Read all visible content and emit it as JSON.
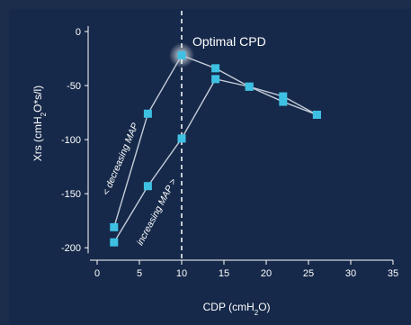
{
  "chart_data": {
    "type": "scatter",
    "xlabel": "CDP (cmH2O)",
    "ylabel": "Xrs (cmH2O*s/l)",
    "xlim": [
      0,
      35
    ],
    "ylim": [
      -210,
      5
    ],
    "x_ticks": [
      0,
      5,
      10,
      15,
      20,
      25,
      30,
      35
    ],
    "y_ticks": [
      0,
      -50,
      -100,
      -150,
      -200
    ],
    "grid": false,
    "reference_line": {
      "x": 10,
      "style": "dashed",
      "label": "Optimal CPD"
    },
    "series": [
      {
        "name": "",
        "annotation": "< decreasing MAP",
        "x": [
          10,
          6,
          2
        ],
        "y": [
          -22,
          -76,
          -181
        ]
      },
      {
        "name": "",
        "annotation": "increasing MAP >",
        "x": [
          2,
          6,
          10,
          14,
          18,
          22,
          26
        ],
        "y": [
          -195,
          -143,
          -99,
          -44,
          -51,
          -60,
          -77
        ]
      },
      {
        "name": "",
        "annotation": "",
        "x": [
          10,
          14,
          18,
          22,
          26
        ],
        "y": [
          -22,
          -34,
          -51,
          -65,
          -77
        ]
      }
    ]
  },
  "colors": {
    "background": "#16294a",
    "marker": "#3ec0e3",
    "line": "#c5ccd8",
    "axis": "#ffffff"
  }
}
